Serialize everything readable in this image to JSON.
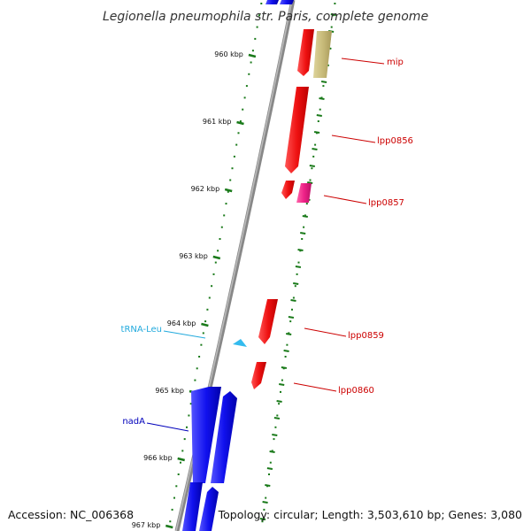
{
  "title": "Legionella pneumophila str. Paris, complete genome",
  "footer": {
    "accession": "Accession: NC_006368",
    "summary": "Topology: circular; Length: 3,503,610 bp; Genes: 3,080"
  },
  "colors": {
    "backbone": "#888888",
    "tick": "#1a7a1a",
    "forward_gene": "#ee1111",
    "reverse_gene": "#1111ee",
    "label_red": "#cc0000",
    "label_blue": "#0000bb",
    "label_cyan": "#22aadd",
    "trna": "#33bbee",
    "pseudo": "#c8bb7a",
    "pink": "#ee2288"
  },
  "ticks": [
    {
      "label": "960 kbp"
    },
    {
      "label": "961 kbp"
    },
    {
      "label": "962 kbp"
    },
    {
      "label": "963 kbp"
    },
    {
      "label": "964 kbp"
    },
    {
      "label": "965 kbp"
    },
    {
      "label": "966 kbp"
    },
    {
      "label": "967 kbp"
    }
  ],
  "labels": [
    {
      "name": "mip",
      "color": "label_red"
    },
    {
      "name": "lpp0856",
      "color": "label_red"
    },
    {
      "name": "lpp0857",
      "color": "label_red"
    },
    {
      "name": "lpp0859",
      "color": "label_red"
    },
    {
      "name": "lpp0860",
      "color": "label_red"
    },
    {
      "name": "tRNA-Leu",
      "color": "label_cyan"
    },
    {
      "name": "nadA",
      "color": "label_blue"
    }
  ]
}
